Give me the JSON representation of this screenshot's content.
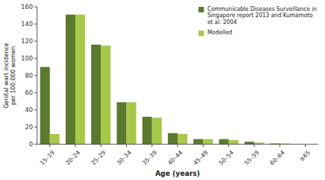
{
  "chart_data": {
    "type": "bar",
    "x_label": "Age (years)",
    "y_label": "Genital wart incidence\nper 100,000 women",
    "categories": [
      "15–19",
      "20–24",
      "25–29",
      "30–34",
      "35–39",
      "40–44",
      "45–49",
      "50–54",
      "55–59",
      "60–64",
      "≥65"
    ],
    "series": [
      {
        "name": "Communicable Diseases Surveillance in\nSingapore report 2013 and Kumamoto\net al. 2004",
        "color": "#5a7a2e",
        "values": [
          90,
          151,
          116,
          49,
          32,
          13,
          6,
          6,
          3,
          1,
          0
        ]
      },
      {
        "name": "Modelled",
        "color": "#a8c84a",
        "values": [
          12,
          151,
          115,
          49,
          31,
          12,
          6,
          5,
          2,
          1,
          0
        ]
      }
    ],
    "ylim": [
      0,
      160
    ],
    "yticks": [
      0,
      20,
      40,
      60,
      80,
      100,
      120,
      140,
      160
    ],
    "grid": false,
    "legend": "upper right"
  }
}
